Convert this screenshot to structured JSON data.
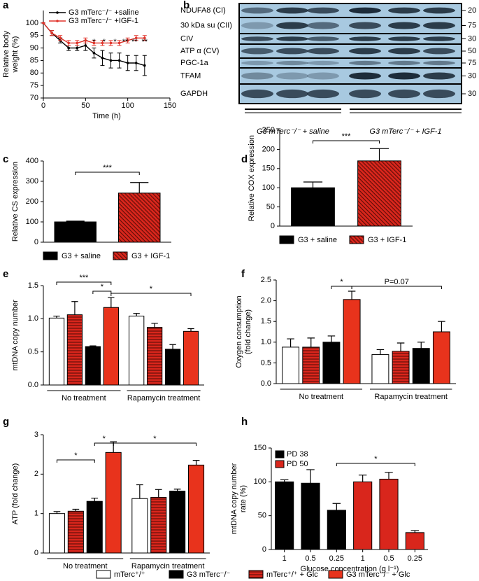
{
  "chart_data": [
    {
      "panel": "a",
      "type": "line",
      "ylabel": [
        "Relative body",
        "weight (%)"
      ],
      "xlabel": "Time (h)",
      "x": [
        0,
        10,
        20,
        30,
        40,
        50,
        60,
        70,
        80,
        90,
        100,
        110,
        120
      ],
      "series": [
        {
          "name": "G3 mTerc⁻/⁻ +saline",
          "color": "#000000",
          "values": [
            100,
            96,
            93,
            90,
            90,
            91,
            88,
            86,
            85,
            85,
            84,
            84,
            83
          ],
          "errors": [
            0,
            1,
            1,
            1,
            1,
            2,
            2,
            3,
            3,
            3,
            3,
            3,
            4
          ]
        },
        {
          "name": "G3 mTerc⁻/⁻ +IGF-1",
          "color": "#e0332a",
          "values": [
            100,
            96,
            94,
            92,
            92,
            93,
            92,
            92,
            92,
            92,
            93,
            94,
            94
          ],
          "errors": [
            0,
            1,
            1,
            1,
            1,
            1,
            1,
            1,
            1,
            1,
            1,
            1,
            1
          ]
        }
      ],
      "xlim": [
        0,
        150
      ],
      "xticks": [
        0,
        50,
        100,
        150
      ],
      "ylim": [
        70,
        105
      ],
      "yticks": [
        70,
        75,
        80,
        85,
        90,
        95,
        100
      ],
      "annotations": [
        "*",
        "*",
        "*",
        "**",
        "**",
        "**"
      ]
    },
    {
      "panel": "c",
      "type": "bar",
      "ylabel": "Relative CS expression",
      "categories": [
        "G3 + saline",
        "G3 + IGF-1"
      ],
      "values": [
        100,
        242
      ],
      "errors": [
        4,
        52
      ],
      "colors": [
        "#000000",
        "#d9261c"
      ],
      "hatched": [
        false,
        true
      ],
      "hatch": "diagonal",
      "ylim": [
        0,
        400
      ],
      "yticks": [
        0,
        100,
        200,
        300,
        400
      ],
      "annotations": [
        "***"
      ]
    },
    {
      "panel": "d",
      "type": "bar",
      "ylabel": "Relative COX expression",
      "categories": [
        "G3 + saline",
        "G3 + IGF-1"
      ],
      "values": [
        100,
        170
      ],
      "errors": [
        15,
        32
      ],
      "colors": [
        "#000000",
        "#d9261c"
      ],
      "hatched": [
        false,
        true
      ],
      "hatch": "diagonal",
      "ylim": [
        0,
        250
      ],
      "yticks": [
        0,
        50,
        100,
        150,
        200,
        250
      ],
      "annotations": [
        "***"
      ]
    },
    {
      "panel": "e",
      "type": "bar",
      "ylabel": "mtDNA copy number",
      "groups": [
        "No treatment",
        "Rapamycin treatment"
      ],
      "values": [
        1.01,
        1.06,
        0.58,
        1.17,
        1.04,
        0.87,
        0.54,
        0.81
      ],
      "errors": [
        0.03,
        0.2,
        0.01,
        0.15,
        0.04,
        0.06,
        0.07,
        0.04
      ],
      "colors": [
        "#ffffff",
        "#d9261c",
        "#000000",
        "#e8331c",
        "#ffffff",
        "#d9261c",
        "#000000",
        "#e8331c"
      ],
      "hatched": [
        false,
        true,
        false,
        false,
        false,
        true,
        false,
        false
      ],
      "hatch": "horizontal",
      "ylim": [
        0,
        1.5
      ],
      "yticks": [
        {
          "value": 0,
          "label": "0.0"
        },
        0.5,
        {
          "value": 1,
          "label": "1.0"
        },
        1.5
      ],
      "annotations": [
        "***",
        "*",
        "*"
      ]
    },
    {
      "panel": "f",
      "type": "bar",
      "ylabel": [
        "Oxygen consumption",
        "(fold change)"
      ],
      "groups": [
        "No treatment",
        "Rapamycin treatment"
      ],
      "values": [
        0.88,
        0.88,
        1.0,
        2.03,
        0.7,
        0.78,
        0.85,
        1.25
      ],
      "errors": [
        0.2,
        0.22,
        0.15,
        0.2,
        0.12,
        0.2,
        0.15,
        0.25
      ],
      "colors": [
        "#ffffff",
        "#d9261c",
        "#000000",
        "#e8331c",
        "#ffffff",
        "#d9261c",
        "#000000",
        "#e8331c"
      ],
      "hatched": [
        false,
        true,
        false,
        false,
        false,
        true,
        false,
        false
      ],
      "hatch": "horizontal",
      "ylim": [
        0,
        2.5
      ],
      "yticks": [
        {
          "value": 0,
          "label": "0.0"
        },
        0.5,
        {
          "value": 1,
          "label": "1.0"
        },
        1.5,
        {
          "value": 2,
          "label": "2.0"
        },
        2.5
      ],
      "annotations": [
        "*",
        "P=0.07"
      ]
    },
    {
      "panel": "g",
      "type": "bar",
      "ylabel": "ATP (fold change)",
      "groups": [
        "No treatment",
        "Rapamycin treatment"
      ],
      "values": [
        1.0,
        1.06,
        1.31,
        2.55,
        1.38,
        1.41,
        1.57,
        2.23
      ],
      "errors": [
        0.05,
        0.05,
        0.08,
        0.27,
        0.35,
        0.2,
        0.05,
        0.12
      ],
      "colors": [
        "#ffffff",
        "#d9261c",
        "#000000",
        "#e8331c",
        "#ffffff",
        "#d9261c",
        "#000000",
        "#e8331c"
      ],
      "hatched": [
        false,
        true,
        false,
        false,
        false,
        true,
        false,
        false
      ],
      "hatch": "horizontal",
      "ylim": [
        0,
        3
      ],
      "yticks": [
        0,
        1,
        2,
        3
      ],
      "annotations": [
        "*",
        "*",
        "*"
      ]
    },
    {
      "panel": "h",
      "type": "bar",
      "ylabel": [
        "mtDNA copy number",
        "rate (%)"
      ],
      "xlabel": "Glucose concentration (g l⁻¹)",
      "categories": [
        "1",
        "0.5",
        "0.25",
        "1",
        "0.5",
        "0.25"
      ],
      "series": [
        {
          "name": "PD 38",
          "color": "#000000",
          "values": [
            100,
            98,
            58,
            null,
            null,
            null
          ],
          "errors": [
            3,
            20,
            10,
            null,
            null,
            null
          ]
        },
        {
          "name": "PD 50",
          "color": "#d9261c",
          "values": [
            null,
            null,
            null,
            100,
            104,
            25
          ],
          "errors": [
            null,
            null,
            null,
            10,
            10,
            3
          ]
        }
      ],
      "ylim": [
        0,
        150
      ],
      "yticks": [
        0,
        50,
        100,
        150
      ],
      "annotations": [
        "*"
      ]
    }
  ],
  "blot": {
    "panel": "b",
    "rows": [
      {
        "label": "NDUFA8 (CI)",
        "marker": 20
      },
      {
        "label": "30 kDa su (CII)",
        "marker": 75
      },
      {
        "label": "CIV",
        "marker": 30
      },
      {
        "label": "ATP α (CV)",
        "marker": 50
      },
      {
        "label": "PGC-1a",
        "marker": 75
      },
      {
        "label": "TFAM",
        "marker": 30
      },
      {
        "label": "GAPDH",
        "marker": 30
      }
    ],
    "groups": [
      "G3 mTerc⁻/⁻ + saline",
      "G3 mTerc⁻/⁻ + IGF-1"
    ]
  },
  "legend": {
    "hatch": "horizontal",
    "items": [
      {
        "name": "mTerc⁺/⁺",
        "color": "#ffffff",
        "hatched": false
      },
      {
        "name": "G3 mTerc⁻/⁻",
        "color": "#000000",
        "hatched": false
      },
      {
        "name": "mTerc⁺/⁺ + Glc",
        "color": "#d9261c",
        "hatched": true
      },
      {
        "name": "G3 mTerc⁻/⁻ + Glc",
        "color": "#e8331c",
        "hatched": false
      }
    ]
  }
}
